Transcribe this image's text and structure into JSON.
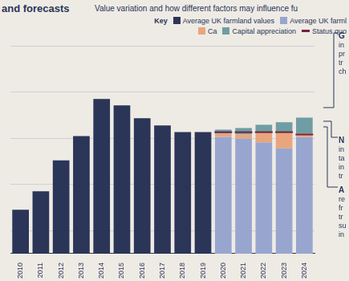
{
  "chart_data": {
    "type": "bar",
    "title": "and forecasts",
    "subtitle": "Value variation and how different factors may influence fu",
    "legend_title": "Key",
    "categories": [
      "2010",
      "2011",
      "2012",
      "2013",
      "2014",
      "2015",
      "2016",
      "2017",
      "2018",
      "2019",
      "2020",
      "2021",
      "2022",
      "2023",
      "2024"
    ],
    "series": [
      {
        "name": "Average UK farmland values",
        "color": "#2b3558",
        "values": [
          1900,
          2700,
          4040,
          5090,
          6700,
          6420,
          5860,
          5550,
          5260,
          5260,
          null,
          null,
          null,
          null,
          null
        ]
      },
      {
        "name": "Average UK farml",
        "color": "#98a6cf",
        "values": [
          null,
          null,
          null,
          null,
          null,
          null,
          null,
          null,
          null,
          null,
          5050,
          4980,
          4810,
          4560,
          5050
        ]
      },
      {
        "name": "Ca",
        "color": "#e9a57d",
        "values": [
          null,
          null,
          null,
          null,
          null,
          null,
          null,
          null,
          null,
          null,
          140,
          180,
          420,
          670,
          140
        ]
      },
      {
        "name": "Capital appreciation",
        "color": "#6e9ea3",
        "values": [
          null,
          null,
          null,
          null,
          null,
          null,
          null,
          null,
          null,
          null,
          180,
          280,
          350,
          460,
          700
        ]
      },
      {
        "name": "Status quo",
        "color": "#7a1f3d",
        "type": "line",
        "marker": "line",
        "values": [
          null,
          null,
          null,
          null,
          null,
          null,
          null,
          null,
          null,
          null,
          5260,
          5260,
          5260,
          5260,
          5160
        ]
      }
    ],
    "stacked": true,
    "ylim": [
      0,
      9000
    ],
    "yticks": [
      1000,
      3000,
      5000,
      7000,
      9000
    ],
    "grid": true,
    "tick_labels": "x",
    "annotations": [
      [
        "G",
        "in",
        "pr",
        "tr",
        "ch"
      ],
      [
        "N",
        "in",
        "ta",
        "in",
        "tr"
      ],
      [
        "A",
        "re",
        "fr",
        "tr",
        "su",
        "in"
      ]
    ]
  }
}
